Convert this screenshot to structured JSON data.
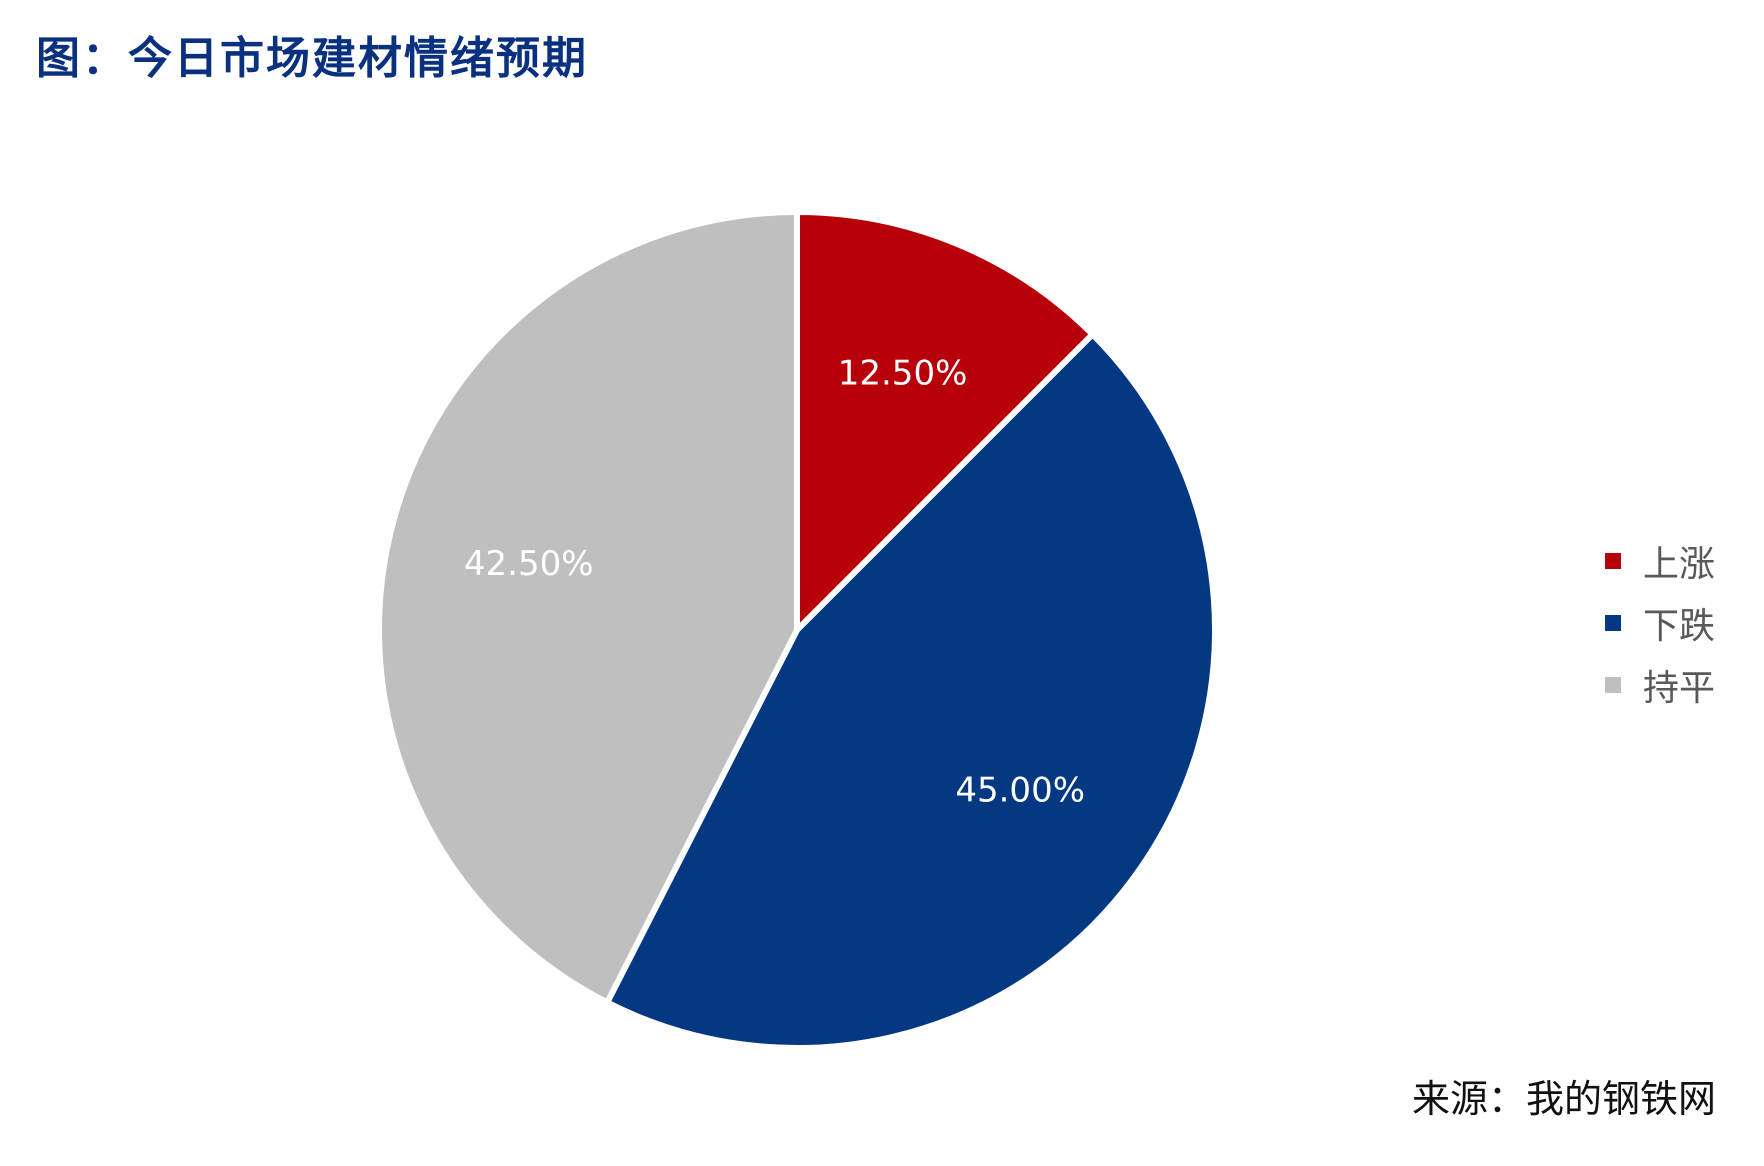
{
  "title": "图：今日市场建材情绪预期",
  "source": "来源：我的钢铁网",
  "chart_data": {
    "type": "pie",
    "categories": [
      "上涨",
      "下跌",
      "持平"
    ],
    "values": [
      12.5,
      45.0,
      42.5
    ],
    "data_labels": [
      "12.50%",
      "45.00%",
      "42.50%"
    ],
    "colors": [
      "#b8000b",
      "#043883",
      "#bfbfbf"
    ],
    "title": "",
    "legend_position": "right",
    "start_angle": "12 o'clock, clockwise"
  },
  "legend": {
    "items": [
      {
        "label": "上涨",
        "color": "#b8000b"
      },
      {
        "label": "下跌",
        "color": "#043883"
      },
      {
        "label": "持平",
        "color": "#bfbfbf"
      }
    ]
  }
}
